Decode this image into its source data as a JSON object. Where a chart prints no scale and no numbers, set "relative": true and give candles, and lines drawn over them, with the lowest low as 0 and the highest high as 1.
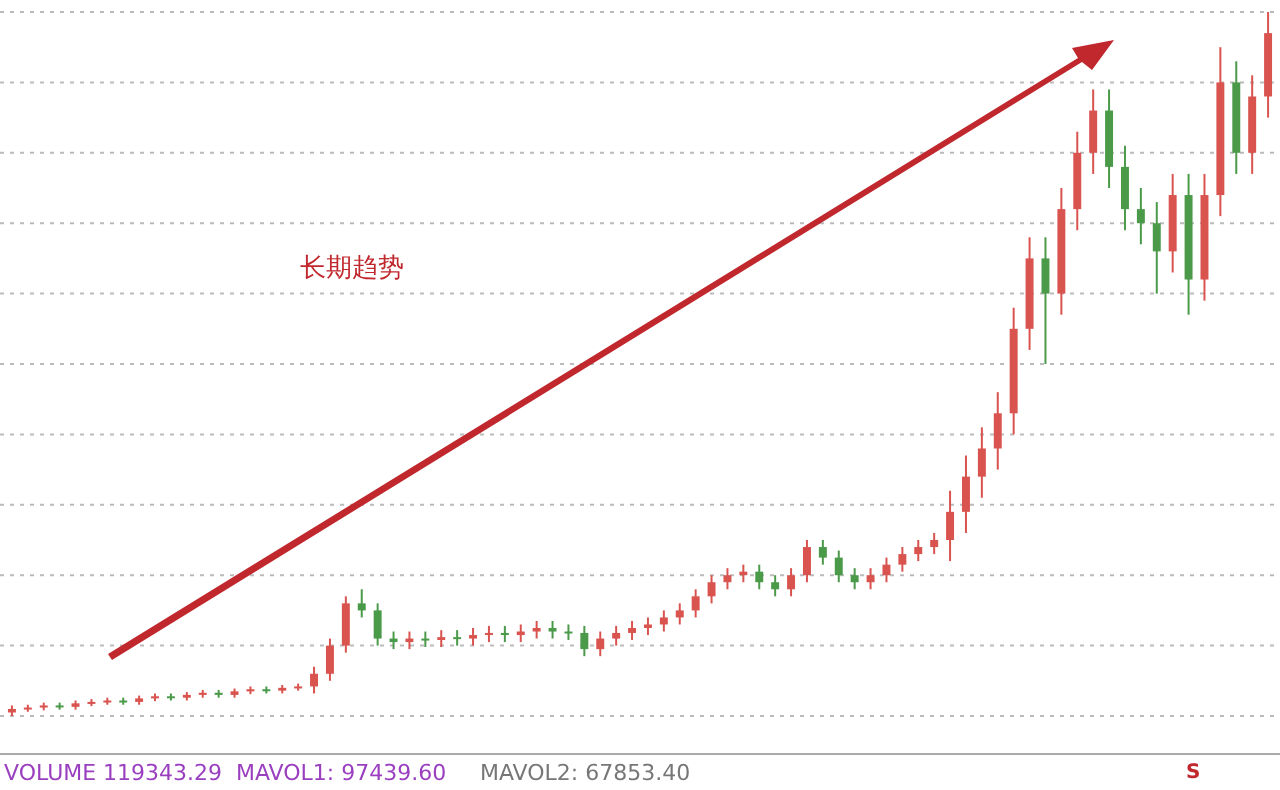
{
  "chart_data": {
    "type": "candlestick",
    "relative": true,
    "grid": true,
    "categories": [
      null,
      null,
      null,
      null,
      null,
      null,
      null,
      null,
      null,
      null,
      null,
      null,
      null,
      null,
      null,
      null,
      null,
      null,
      null,
      null,
      null,
      null,
      null,
      null,
      null,
      null,
      null,
      null,
      null,
      null,
      null,
      null,
      null,
      null,
      null,
      null,
      null,
      null,
      null,
      null,
      null,
      null,
      null,
      null,
      null,
      null,
      null,
      null,
      null,
      null,
      null,
      null,
      null,
      null,
      null,
      null,
      null,
      null,
      null,
      null,
      null,
      null,
      null,
      null,
      null,
      null,
      null,
      null,
      null,
      null,
      null,
      null,
      null,
      null,
      null,
      null,
      null,
      null,
      null,
      null
    ],
    "ohlc": [
      [
        0.005,
        0.015,
        0,
        0.01
      ],
      [
        0.01,
        0.016,
        0.006,
        0.012
      ],
      [
        0.012,
        0.019,
        0.008,
        0.015
      ],
      [
        0.015,
        0.019,
        0.009,
        0.013
      ],
      [
        0.013,
        0.022,
        0.009,
        0.018
      ],
      [
        0.018,
        0.024,
        0.014,
        0.02
      ],
      [
        0.02,
        0.026,
        0.016,
        0.022
      ],
      [
        0.022,
        0.026,
        0.016,
        0.02
      ],
      [
        0.02,
        0.029,
        0.016,
        0.025
      ],
      [
        0.025,
        0.032,
        0.021,
        0.028
      ],
      [
        0.028,
        0.032,
        0.022,
        0.026
      ],
      [
        0.026,
        0.034,
        0.022,
        0.03
      ],
      [
        0.03,
        0.037,
        0.026,
        0.033
      ],
      [
        0.033,
        0.037,
        0.026,
        0.03
      ],
      [
        0.03,
        0.039,
        0.026,
        0.035
      ],
      [
        0.035,
        0.042,
        0.031,
        0.038
      ],
      [
        0.038,
        0.042,
        0.032,
        0.036
      ],
      [
        0.036,
        0.044,
        0.032,
        0.04
      ],
      [
        0.04,
        0.046,
        0.036,
        0.042
      ],
      [
        0.042,
        0.07,
        0.032,
        0.06
      ],
      [
        0.06,
        0.11,
        0.05,
        0.1
      ],
      [
        0.1,
        0.17,
        0.09,
        0.16
      ],
      [
        0.16,
        0.18,
        0.14,
        0.15
      ],
      [
        0.15,
        0.16,
        0.1,
        0.11
      ],
      [
        0.11,
        0.12,
        0.095,
        0.105
      ],
      [
        0.105,
        0.12,
        0.095,
        0.11
      ],
      [
        0.11,
        0.12,
        0.098,
        0.108
      ],
      [
        0.108,
        0.122,
        0.098,
        0.112
      ],
      [
        0.112,
        0.122,
        0.1,
        0.11
      ],
      [
        0.11,
        0.125,
        0.1,
        0.115
      ],
      [
        0.115,
        0.128,
        0.105,
        0.118
      ],
      [
        0.118,
        0.128,
        0.105,
        0.115
      ],
      [
        0.115,
        0.13,
        0.105,
        0.12
      ],
      [
        0.12,
        0.135,
        0.11,
        0.125
      ],
      [
        0.125,
        0.135,
        0.11,
        0.12
      ],
      [
        0.12,
        0.13,
        0.108,
        0.118
      ],
      [
        0.118,
        0.128,
        0.085,
        0.095
      ],
      [
        0.095,
        0.12,
        0.085,
        0.11
      ],
      [
        0.11,
        0.128,
        0.1,
        0.118
      ],
      [
        0.118,
        0.135,
        0.108,
        0.125
      ],
      [
        0.125,
        0.14,
        0.115,
        0.13
      ],
      [
        0.13,
        0.15,
        0.12,
        0.14
      ],
      [
        0.14,
        0.16,
        0.13,
        0.15
      ],
      [
        0.15,
        0.18,
        0.14,
        0.17
      ],
      [
        0.17,
        0.2,
        0.16,
        0.19
      ],
      [
        0.19,
        0.21,
        0.18,
        0.2
      ],
      [
        0.2,
        0.215,
        0.19,
        0.205
      ],
      [
        0.205,
        0.215,
        0.18,
        0.19
      ],
      [
        0.19,
        0.2,
        0.17,
        0.18
      ],
      [
        0.18,
        0.21,
        0.17,
        0.2
      ],
      [
        0.2,
        0.25,
        0.19,
        0.24
      ],
      [
        0.24,
        0.25,
        0.215,
        0.225
      ],
      [
        0.225,
        0.235,
        0.19,
        0.2
      ],
      [
        0.2,
        0.21,
        0.18,
        0.19
      ],
      [
        0.19,
        0.21,
        0.18,
        0.2
      ],
      [
        0.2,
        0.225,
        0.19,
        0.215
      ],
      [
        0.215,
        0.24,
        0.205,
        0.23
      ],
      [
        0.23,
        0.25,
        0.22,
        0.24
      ],
      [
        0.24,
        0.26,
        0.23,
        0.25
      ],
      [
        0.25,
        0.32,
        0.22,
        0.29
      ],
      [
        0.29,
        0.37,
        0.26,
        0.34
      ],
      [
        0.34,
        0.41,
        0.31,
        0.38
      ],
      [
        0.38,
        0.46,
        0.35,
        0.43
      ],
      [
        0.43,
        0.58,
        0.4,
        0.55
      ],
      [
        0.55,
        0.68,
        0.52,
        0.65
      ],
      [
        0.65,
        0.68,
        0.5,
        0.6
      ],
      [
        0.6,
        0.75,
        0.57,
        0.72
      ],
      [
        0.72,
        0.83,
        0.69,
        0.8
      ],
      [
        0.8,
        0.89,
        0.77,
        0.86
      ],
      [
        0.86,
        0.89,
        0.75,
        0.78
      ],
      [
        0.78,
        0.81,
        0.69,
        0.72
      ],
      [
        0.72,
        0.75,
        0.67,
        0.7
      ],
      [
        0.7,
        0.73,
        0.6,
        0.66
      ],
      [
        0.66,
        0.77,
        0.63,
        0.74
      ],
      [
        0.74,
        0.77,
        0.57,
        0.62
      ],
      [
        0.62,
        0.77,
        0.59,
        0.74
      ],
      [
        0.74,
        0.95,
        0.71,
        0.9
      ],
      [
        0.9,
        0.93,
        0.77,
        0.8
      ],
      [
        0.8,
        0.91,
        0.77,
        0.88
      ],
      [
        0.88,
        1,
        0.85,
        0.97
      ]
    ],
    "colors": [
      "#d9534f",
      "#d9534f",
      "#d9534f",
      "#4a9a4a",
      "#d9534f",
      "#d9534f",
      "#d9534f",
      "#4a9a4a",
      "#d9534f",
      "#d9534f",
      "#4a9a4a",
      "#d9534f",
      "#d9534f",
      "#4a9a4a",
      "#d9534f",
      "#d9534f",
      "#4a9a4a",
      "#d9534f",
      "#d9534f",
      "#d9534f",
      "#d9534f",
      "#d9534f",
      "#4a9a4a",
      "#4a9a4a",
      "#4a9a4a",
      "#d9534f",
      "#4a9a4a",
      "#d9534f",
      "#4a9a4a",
      "#d9534f",
      "#d9534f",
      "#4a9a4a",
      "#d9534f",
      "#d9534f",
      "#4a9a4a",
      "#4a9a4a",
      "#4a9a4a",
      "#d9534f",
      "#d9534f",
      "#d9534f",
      "#d9534f",
      "#d9534f",
      "#d9534f",
      "#d9534f",
      "#d9534f",
      "#d9534f",
      "#d9534f",
      "#4a9a4a",
      "#4a9a4a",
      "#d9534f",
      "#d9534f",
      "#4a9a4a",
      "#4a9a4a",
      "#4a9a4a",
      "#d9534f",
      "#d9534f",
      "#d9534f",
      "#d9534f",
      "#d9534f",
      "#d9534f",
      "#d9534f",
      "#d9534f",
      "#d9534f",
      "#d9534f",
      "#d9534f",
      "#4a9a4a",
      "#d9534f",
      "#d9534f",
      "#d9534f",
      "#4a9a4a",
      "#4a9a4a",
      "#4a9a4a",
      "#4a9a4a",
      "#d9534f",
      "#4a9a4a",
      "#d9534f",
      "#d9534f",
      "#4a9a4a",
      "#d9534f",
      "#d9534f"
    ],
    "annotations": [
      "长期趋势",
      "VOLUME 119343.29",
      "MAVOL1: 97439.60",
      "MAVOL2: 67853.40",
      "S"
    ]
  }
}
